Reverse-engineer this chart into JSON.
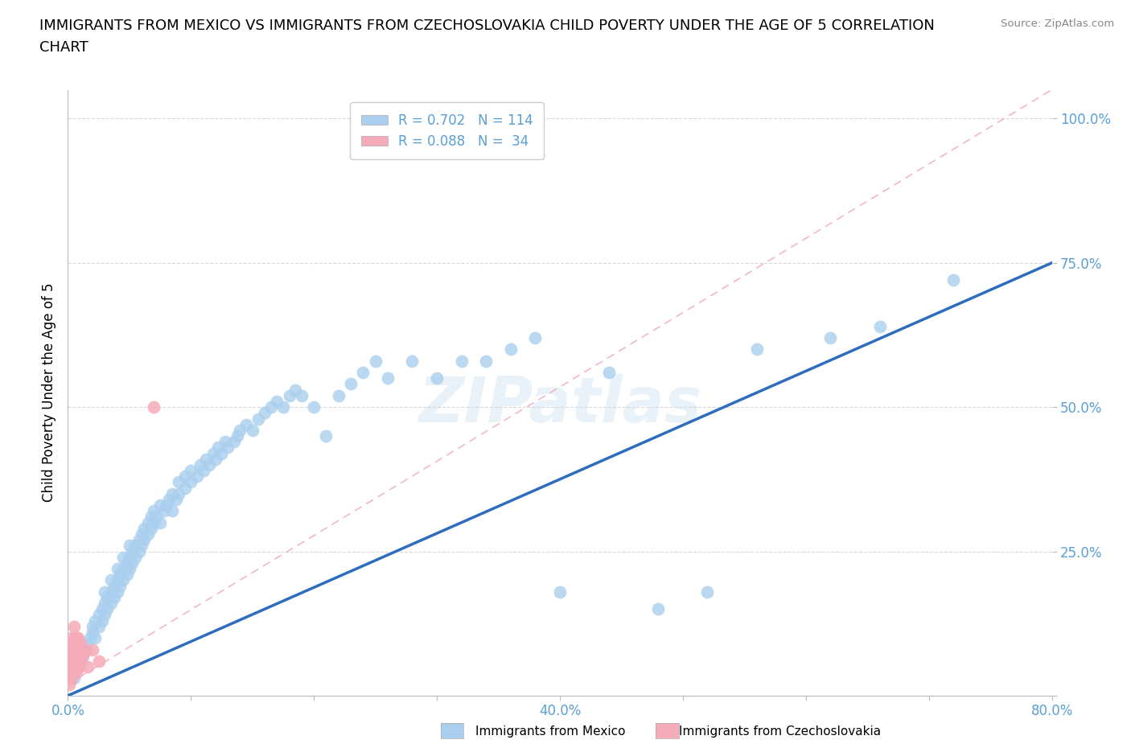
{
  "title": "IMMIGRANTS FROM MEXICO VS IMMIGRANTS FROM CZECHOSLOVAKIA CHILD POVERTY UNDER THE AGE OF 5 CORRELATION\nCHART",
  "ylabel": "Child Poverty Under the Age of 5",
  "source": "Source: ZipAtlas.com",
  "watermark": "ZIPatlas",
  "mexico_R": 0.702,
  "mexico_N": 114,
  "czech_R": 0.088,
  "czech_N": 34,
  "mexico_color": "#aacfee",
  "czech_color": "#f5abb8",
  "mexico_line_color": "#2e6dbe",
  "czech_line_color": "#f0b0be",
  "axis_label_color": "#5a9fd4",
  "xlim": [
    0.0,
    0.8
  ],
  "ylim": [
    0.0,
    1.05
  ],
  "legend_mexico_label": "R = 0.702   N = 114",
  "legend_czech_label": "R = 0.088   N =  34",
  "background_color": "#ffffff",
  "grid_color": "#d0d0d0",
  "mexico_line_intercept": 0.0,
  "mexico_line_slope": 0.9375,
  "czech_line_intercept": 0.05,
  "czech_line_slope": 3.0,
  "mexico_x": [
    0.005,
    0.008,
    0.01,
    0.012,
    0.015,
    0.015,
    0.018,
    0.02,
    0.02,
    0.022,
    0.022,
    0.025,
    0.025,
    0.028,
    0.028,
    0.03,
    0.03,
    0.03,
    0.032,
    0.032,
    0.035,
    0.035,
    0.035,
    0.038,
    0.038,
    0.04,
    0.04,
    0.04,
    0.042,
    0.042,
    0.045,
    0.045,
    0.045,
    0.048,
    0.048,
    0.05,
    0.05,
    0.05,
    0.052,
    0.052,
    0.055,
    0.055,
    0.058,
    0.058,
    0.06,
    0.06,
    0.062,
    0.062,
    0.065,
    0.065,
    0.068,
    0.068,
    0.07,
    0.07,
    0.072,
    0.075,
    0.075,
    0.078,
    0.08,
    0.082,
    0.085,
    0.085,
    0.088,
    0.09,
    0.09,
    0.095,
    0.095,
    0.1,
    0.1,
    0.105,
    0.108,
    0.11,
    0.112,
    0.115,
    0.118,
    0.12,
    0.122,
    0.125,
    0.128,
    0.13,
    0.135,
    0.138,
    0.14,
    0.145,
    0.15,
    0.155,
    0.16,
    0.165,
    0.17,
    0.175,
    0.18,
    0.185,
    0.19,
    0.2,
    0.21,
    0.22,
    0.23,
    0.24,
    0.25,
    0.26,
    0.28,
    0.3,
    0.32,
    0.34,
    0.36,
    0.38,
    0.4,
    0.44,
    0.48,
    0.52,
    0.56,
    0.62,
    0.66,
    0.72
  ],
  "mexico_y": [
    0.03,
    0.05,
    0.06,
    0.07,
    0.08,
    0.09,
    0.1,
    0.11,
    0.12,
    0.1,
    0.13,
    0.12,
    0.14,
    0.13,
    0.15,
    0.14,
    0.16,
    0.18,
    0.15,
    0.17,
    0.16,
    0.18,
    0.2,
    0.17,
    0.19,
    0.18,
    0.2,
    0.22,
    0.19,
    0.21,
    0.2,
    0.22,
    0.24,
    0.21,
    0.23,
    0.22,
    0.24,
    0.26,
    0.23,
    0.25,
    0.24,
    0.26,
    0.25,
    0.27,
    0.26,
    0.28,
    0.27,
    0.29,
    0.28,
    0.3,
    0.29,
    0.31,
    0.3,
    0.32,
    0.31,
    0.3,
    0.33,
    0.32,
    0.33,
    0.34,
    0.32,
    0.35,
    0.34,
    0.35,
    0.37,
    0.36,
    0.38,
    0.37,
    0.39,
    0.38,
    0.4,
    0.39,
    0.41,
    0.4,
    0.42,
    0.41,
    0.43,
    0.42,
    0.44,
    0.43,
    0.44,
    0.45,
    0.46,
    0.47,
    0.46,
    0.48,
    0.49,
    0.5,
    0.51,
    0.5,
    0.52,
    0.53,
    0.52,
    0.5,
    0.45,
    0.52,
    0.54,
    0.56,
    0.58,
    0.55,
    0.58,
    0.55,
    0.58,
    0.58,
    0.6,
    0.62,
    0.18,
    0.56,
    0.15,
    0.18,
    0.6,
    0.62,
    0.64,
    0.72
  ],
  "czech_x": [
    0.001,
    0.001,
    0.002,
    0.002,
    0.002,
    0.003,
    0.003,
    0.003,
    0.003,
    0.004,
    0.004,
    0.004,
    0.005,
    0.005,
    0.005,
    0.005,
    0.006,
    0.006,
    0.006,
    0.007,
    0.007,
    0.008,
    0.008,
    0.008,
    0.009,
    0.009,
    0.01,
    0.01,
    0.012,
    0.014,
    0.016,
    0.02,
    0.025,
    0.07
  ],
  "czech_y": [
    0.02,
    0.04,
    0.03,
    0.06,
    0.08,
    0.03,
    0.05,
    0.07,
    0.1,
    0.04,
    0.07,
    0.09,
    0.04,
    0.06,
    0.08,
    0.12,
    0.05,
    0.07,
    0.1,
    0.04,
    0.08,
    0.05,
    0.07,
    0.1,
    0.05,
    0.08,
    0.06,
    0.09,
    0.07,
    0.08,
    0.05,
    0.08,
    0.06,
    0.5
  ]
}
